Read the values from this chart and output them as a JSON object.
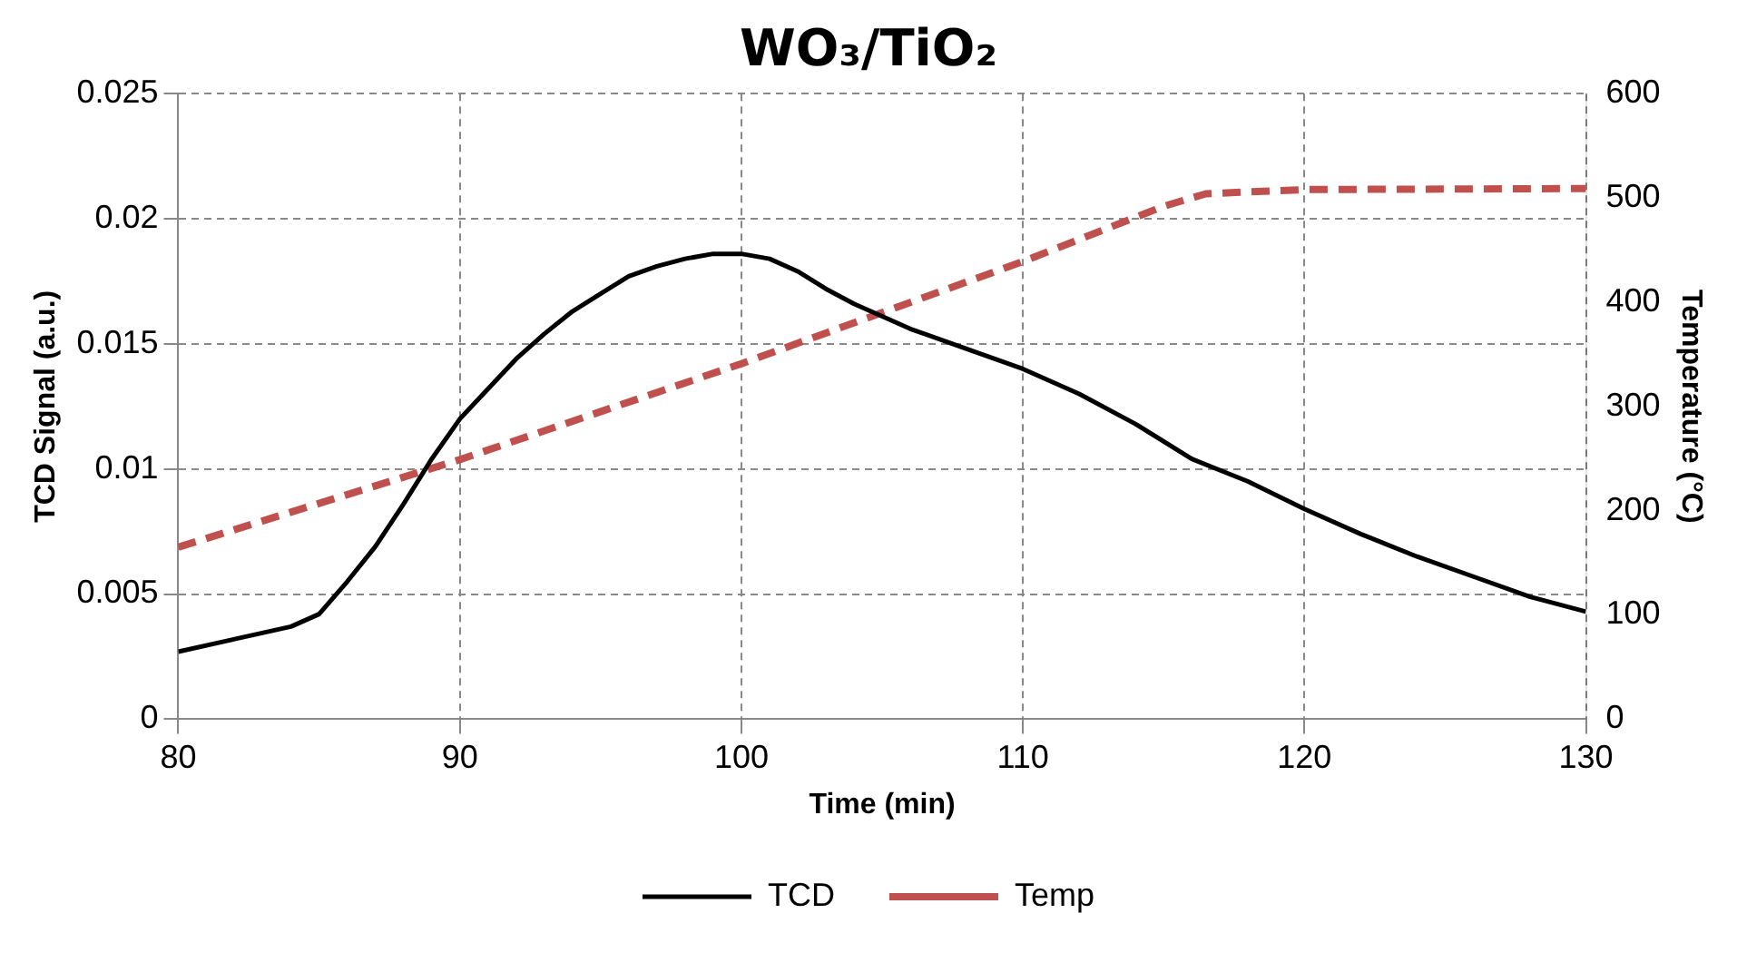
{
  "chart_data": {
    "type": "line",
    "title": "WO₃/TiO₂",
    "xlabel": "Time (min)",
    "ylabel": "TCD Signal (a.u.)",
    "y2label": "Temperature (°C)",
    "xlim": [
      80,
      130
    ],
    "xticks": [
      80,
      90,
      100,
      110,
      120,
      130
    ],
    "ylim": [
      0,
      0.025
    ],
    "yticks": [
      0,
      0.005,
      0.01,
      0.015,
      0.02,
      0.025
    ],
    "y2lim": [
      0,
      600
    ],
    "y2ticks": [
      0,
      100,
      200,
      300,
      400,
      500,
      600
    ],
    "grid": true,
    "legend": "bottom",
    "marker": "none",
    "series": [
      {
        "name": "TCD",
        "color": "#000000",
        "line_style": "solid",
        "x": [
          80,
          82,
          84,
          85,
          86,
          87,
          88,
          89,
          90,
          91,
          92,
          93,
          94,
          95,
          96,
          97,
          98,
          99,
          100,
          101,
          102,
          103,
          104,
          105,
          106,
          108,
          110,
          112,
          114,
          116,
          118,
          120,
          122,
          124,
          126,
          128,
          130
        ],
        "values": [
          0.0027,
          0.0032,
          0.0037,
          0.0042,
          0.0055,
          0.0069,
          0.0086,
          0.0104,
          0.012,
          0.0132,
          0.0144,
          0.0154,
          0.0163,
          0.017,
          0.0177,
          0.0181,
          0.0184,
          0.0186,
          0.0186,
          0.0184,
          0.0179,
          0.0172,
          0.0166,
          0.0161,
          0.0156,
          0.0148,
          0.014,
          0.013,
          0.0118,
          0.0104,
          0.0095,
          0.0084,
          0.0074,
          0.0065,
          0.0057,
          0.0049,
          0.0043
        ]
      },
      {
        "name": "Temp",
        "color": "#c0504d",
        "line_style": "dashed",
        "axis": "y2",
        "x": [
          80,
          90,
          100,
          110,
          115,
          116.5,
          120,
          130
        ],
        "values": [
          165,
          249,
          341,
          439,
          492,
          504,
          508,
          509
        ]
      }
    ]
  }
}
